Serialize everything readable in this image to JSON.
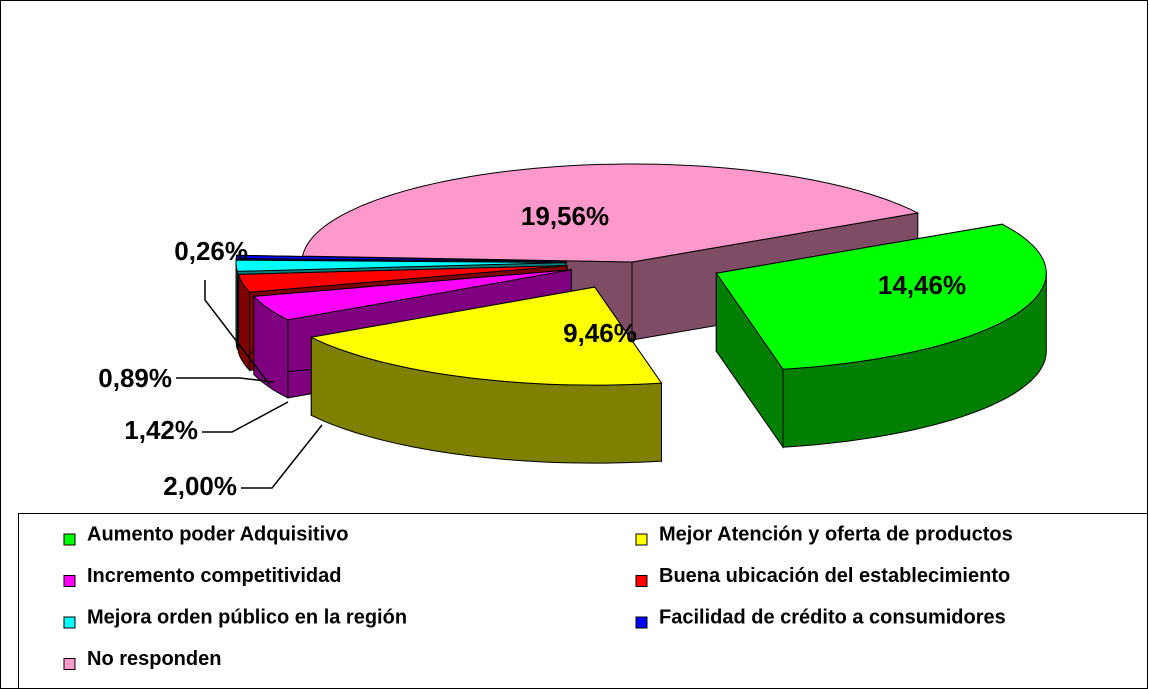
{
  "chart_data": {
    "type": "pie",
    "categories": [
      "Aumento poder Adquisitivo",
      "Mejor Atención y oferta de productos",
      "Incremento competitividad",
      "Buena ubicación del establecimiento",
      "Mejora orden público en la región",
      "Facilidad de crédito a consumidores",
      "No responden"
    ],
    "values": [
      14.46,
      9.46,
      2.0,
      1.42,
      0.89,
      0.26,
      19.56
    ],
    "value_labels": [
      "14,46%",
      "9,46%",
      "2,00%",
      "1,42%",
      "0,89%",
      "0,26%",
      "19,56%"
    ],
    "colors": [
      "#00ff00",
      "#ffff00",
      "#ff00ff",
      "#ff0000",
      "#00ffff",
      "#0000ff",
      "#ff99cc"
    ],
    "legend": "bottom"
  }
}
